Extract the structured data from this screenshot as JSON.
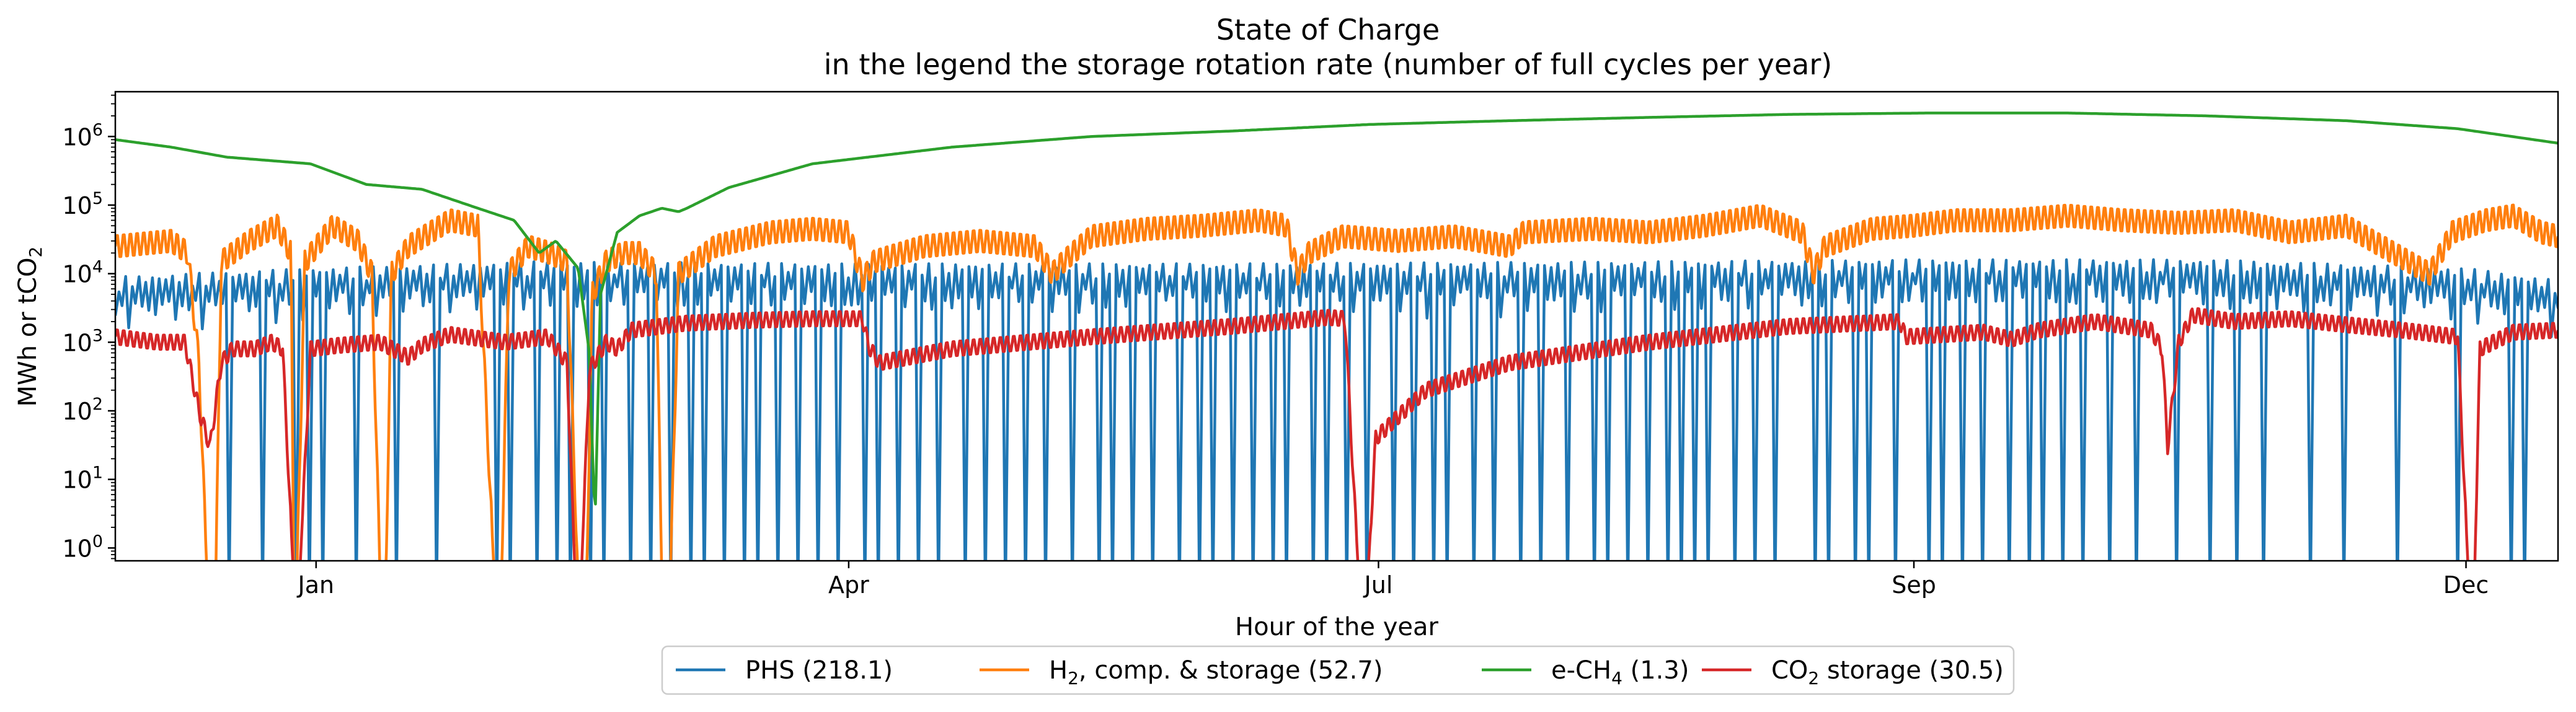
{
  "chart_data": {
    "type": "line",
    "title": "State of Charge",
    "subtitle": "in the legend the storage rotation rate (number of full cycles per year)",
    "xlabel": "Hour of the year",
    "ylabel_main": "MWh or tCO",
    "ylabel_sub": "2",
    "y_scale": "log",
    "ylim": [
      0.65,
      4500000
    ],
    "xlim": [
      0,
      8760
    ],
    "x_ticks": [
      {
        "label": "Jan",
        "value": 720
      },
      {
        "label": "Apr",
        "value": 2630
      },
      {
        "label": "Jul",
        "value": 4530
      },
      {
        "label": "Sep",
        "value": 6450
      },
      {
        "label": "Dec",
        "value": 8430
      }
    ],
    "y_ticks": [
      {
        "base": "10",
        "exp": "0",
        "value": 1
      },
      {
        "base": "10",
        "exp": "1",
        "value": 10
      },
      {
        "base": "10",
        "exp": "2",
        "value": 100
      },
      {
        "base": "10",
        "exp": "3",
        "value": 1000
      },
      {
        "base": "10",
        "exp": "4",
        "value": 10000
      },
      {
        "base": "10",
        "exp": "5",
        "value": 100000
      },
      {
        "base": "10",
        "exp": "6",
        "value": 1000000
      }
    ],
    "legend_position": "bottom-center",
    "grid": false,
    "series": [
      {
        "id": "phs",
        "legend": {
          "pre": "PHS (218.1)",
          "sub": "",
          "post": ""
        },
        "color": "#1f77b4",
        "envelope": [
          [
            0,
            9000
          ],
          [
            720,
            12000
          ],
          [
            1500,
            15000
          ],
          [
            2600,
            14000
          ],
          [
            4000,
            14000
          ],
          [
            5500,
            15000
          ],
          [
            6450,
            16000
          ],
          [
            7500,
            16000
          ],
          [
            8430,
            12000
          ],
          [
            8760,
            8000
          ]
        ],
        "cycle_hours": 24,
        "depth": 0.55,
        "deep_dips": [
          400,
          530,
          640,
          700,
          750,
          870,
          1000,
          1150,
          1370,
          1420,
          1520,
          1580,
          1630,
          1700,
          1760,
          1850,
          1920,
          1980,
          2060,
          2120,
          2180,
          2250,
          2300,
          2380,
          2440,
          2520,
          2600,
          2680,
          2740,
          2800,
          2880,
          2950,
          3050,
          3120,
          3200,
          3260,
          3340,
          3420,
          3520,
          3580,
          3640,
          3720,
          3820,
          3880,
          3930,
          4000,
          4080,
          4160,
          4200,
          4300,
          4350,
          4420,
          4480,
          4580,
          4660,
          4720,
          4780,
          4860,
          4950,
          5040,
          5100,
          5200,
          5300,
          5350,
          5430,
          5500,
          5560,
          5620,
          5660,
          5720,
          5800,
          5880,
          5960,
          6100,
          6150,
          6230,
          6290,
          6380,
          6500,
          6560,
          6620,
          6700,
          6780,
          6860,
          6920,
          6980,
          7050,
          7150,
          7250,
          7400,
          7500,
          7600,
          7700,
          7860,
          8000,
          8180,
          8400,
          8580,
          8650
        ]
      },
      {
        "id": "h2",
        "legend": {
          "pre": "H",
          "sub": "2",
          "post": ", comp. & storage (52.7)"
        },
        "color": "#ff7f0e",
        "keypoints": [
          [
            0,
            25000
          ],
          [
            200,
            30000
          ],
          [
            260,
            20000
          ],
          [
            300,
            500
          ],
          [
            330,
            0.3
          ],
          [
            360,
            0.3
          ],
          [
            380,
            15000
          ],
          [
            480,
            30000
          ],
          [
            580,
            50000
          ],
          [
            630,
            20000
          ],
          [
            640,
            0.3
          ],
          [
            650,
            0.3
          ],
          [
            680,
            15000
          ],
          [
            780,
            50000
          ],
          [
            870,
            30000
          ],
          [
            920,
            10000
          ],
          [
            950,
            0.3
          ],
          [
            970,
            0.3
          ],
          [
            990,
            10000
          ],
          [
            1050,
            25000
          ],
          [
            1200,
            60000
          ],
          [
            1300,
            50000
          ],
          [
            1360,
            0.3
          ],
          [
            1385,
            0.3
          ],
          [
            1410,
            10000
          ],
          [
            1480,
            25000
          ],
          [
            1560,
            20000
          ],
          [
            1620,
            15000
          ],
          [
            1660,
            0.3
          ],
          [
            1690,
            0.3
          ],
          [
            1710,
            5000
          ],
          [
            1760,
            15000
          ],
          [
            1820,
            20000
          ],
          [
            1880,
            20000
          ],
          [
            1940,
            10000
          ],
          [
            1960,
            0.3
          ],
          [
            1990,
            0.3
          ],
          [
            2020,
            10000
          ],
          [
            2150,
            25000
          ],
          [
            2350,
            40000
          ],
          [
            2500,
            45000
          ],
          [
            2630,
            40000
          ],
          [
            2680,
            8000
          ],
          [
            2720,
            15000
          ],
          [
            2900,
            25000
          ],
          [
            3100,
            30000
          ],
          [
            3300,
            25000
          ],
          [
            3360,
            10000
          ],
          [
            3400,
            15000
          ],
          [
            3500,
            35000
          ],
          [
            3700,
            45000
          ],
          [
            3900,
            50000
          ],
          [
            4100,
            60000
          ],
          [
            4200,
            50000
          ],
          [
            4240,
            10000
          ],
          [
            4280,
            20000
          ],
          [
            4400,
            35000
          ],
          [
            4600,
            30000
          ],
          [
            4800,
            35000
          ],
          [
            5000,
            25000
          ],
          [
            5050,
            40000
          ],
          [
            5300,
            45000
          ],
          [
            5500,
            40000
          ],
          [
            5700,
            50000
          ],
          [
            5900,
            70000
          ],
          [
            6050,
            40000
          ],
          [
            6090,
            10000
          ],
          [
            6130,
            25000
          ],
          [
            6300,
            45000
          ],
          [
            6450,
            50000
          ],
          [
            6600,
            60000
          ],
          [
            6800,
            60000
          ],
          [
            7000,
            70000
          ],
          [
            7200,
            60000
          ],
          [
            7400,
            55000
          ],
          [
            7600,
            60000
          ],
          [
            7800,
            40000
          ],
          [
            8000,
            50000
          ],
          [
            8300,
            10000
          ],
          [
            8380,
            40000
          ],
          [
            8500,
            60000
          ],
          [
            8600,
            70000
          ],
          [
            8700,
            40000
          ],
          [
            8760,
            35000
          ]
        ]
      },
      {
        "id": "ch4",
        "legend": {
          "pre": "e-CH",
          "sub": "4",
          "post": " (1.3)"
        },
        "color": "#2ca02c",
        "keypoints": [
          [
            0,
            900000
          ],
          [
            200,
            700000
          ],
          [
            400,
            500000
          ],
          [
            700,
            400000
          ],
          [
            900,
            200000
          ],
          [
            1100,
            170000
          ],
          [
            1300,
            90000
          ],
          [
            1430,
            60000
          ],
          [
            1520,
            20000
          ],
          [
            1580,
            30000
          ],
          [
            1660,
            12000
          ],
          [
            1700,
            700
          ],
          [
            1720,
            2
          ],
          [
            1740,
            5000
          ],
          [
            1800,
            40000
          ],
          [
            1880,
            70000
          ],
          [
            1960,
            90000
          ],
          [
            2020,
            80000
          ],
          [
            2050,
            90000
          ],
          [
            2200,
            180000
          ],
          [
            2500,
            400000
          ],
          [
            3000,
            700000
          ],
          [
            3500,
            1000000
          ],
          [
            4000,
            1200000
          ],
          [
            4500,
            1500000
          ],
          [
            5000,
            1700000
          ],
          [
            5500,
            1900000
          ],
          [
            6000,
            2100000
          ],
          [
            6500,
            2200000
          ],
          [
            7000,
            2200000
          ],
          [
            7500,
            2000000
          ],
          [
            8000,
            1700000
          ],
          [
            8400,
            1300000
          ],
          [
            8760,
            800000
          ]
        ]
      },
      {
        "id": "co2",
        "legend": {
          "pre": "CO",
          "sub": "2",
          "post": " storage (30.5)"
        },
        "color": "#d62728",
        "keypoints": [
          [
            0,
            1200
          ],
          [
            150,
            1000
          ],
          [
            250,
            1000
          ],
          [
            300,
            100
          ],
          [
            340,
            30
          ],
          [
            380,
            500
          ],
          [
            420,
            800
          ],
          [
            500,
            800
          ],
          [
            560,
            1000
          ],
          [
            600,
            800
          ],
          [
            640,
            0.3
          ],
          [
            660,
            0.3
          ],
          [
            700,
            800
          ],
          [
            800,
            900
          ],
          [
            950,
            1000
          ],
          [
            1050,
            600
          ],
          [
            1100,
            900
          ],
          [
            1200,
            1300
          ],
          [
            1400,
            1000
          ],
          [
            1550,
            1200
          ],
          [
            1620,
            500
          ],
          [
            1650,
            0.3
          ],
          [
            1670,
            0.3
          ],
          [
            1700,
            400
          ],
          [
            1760,
            1000
          ],
          [
            1800,
            800
          ],
          [
            1850,
            1500
          ],
          [
            2000,
            1800
          ],
          [
            2050,
            1900
          ],
          [
            2300,
            2100
          ],
          [
            2500,
            2200
          ],
          [
            2680,
            2200
          ],
          [
            2700,
            900
          ],
          [
            2740,
            500
          ],
          [
            3000,
            800
          ],
          [
            3500,
            1200
          ],
          [
            4000,
            1700
          ],
          [
            4350,
            2300
          ],
          [
            4410,
            2200
          ],
          [
            4440,
            10
          ],
          [
            4460,
            0.3
          ],
          [
            4490,
            0.3
          ],
          [
            4520,
            40
          ],
          [
            4700,
            200
          ],
          [
            5000,
            500
          ],
          [
            5500,
            1000
          ],
          [
            6000,
            1700
          ],
          [
            6400,
            2000
          ],
          [
            6420,
            1200
          ],
          [
            6700,
            1400
          ],
          [
            6800,
            1100
          ],
          [
            6900,
            1500
          ],
          [
            7100,
            2000
          ],
          [
            7300,
            1500
          ],
          [
            7340,
            800
          ],
          [
            7360,
            30
          ],
          [
            7400,
            1000
          ],
          [
            7450,
            2500
          ],
          [
            7600,
            2000
          ],
          [
            7800,
            2200
          ],
          [
            8000,
            1800
          ],
          [
            8200,
            1500
          ],
          [
            8400,
            1200
          ],
          [
            8440,
            0.3
          ],
          [
            8460,
            0.3
          ],
          [
            8480,
            800
          ],
          [
            8600,
            1400
          ],
          [
            8760,
            1500
          ]
        ]
      }
    ]
  }
}
